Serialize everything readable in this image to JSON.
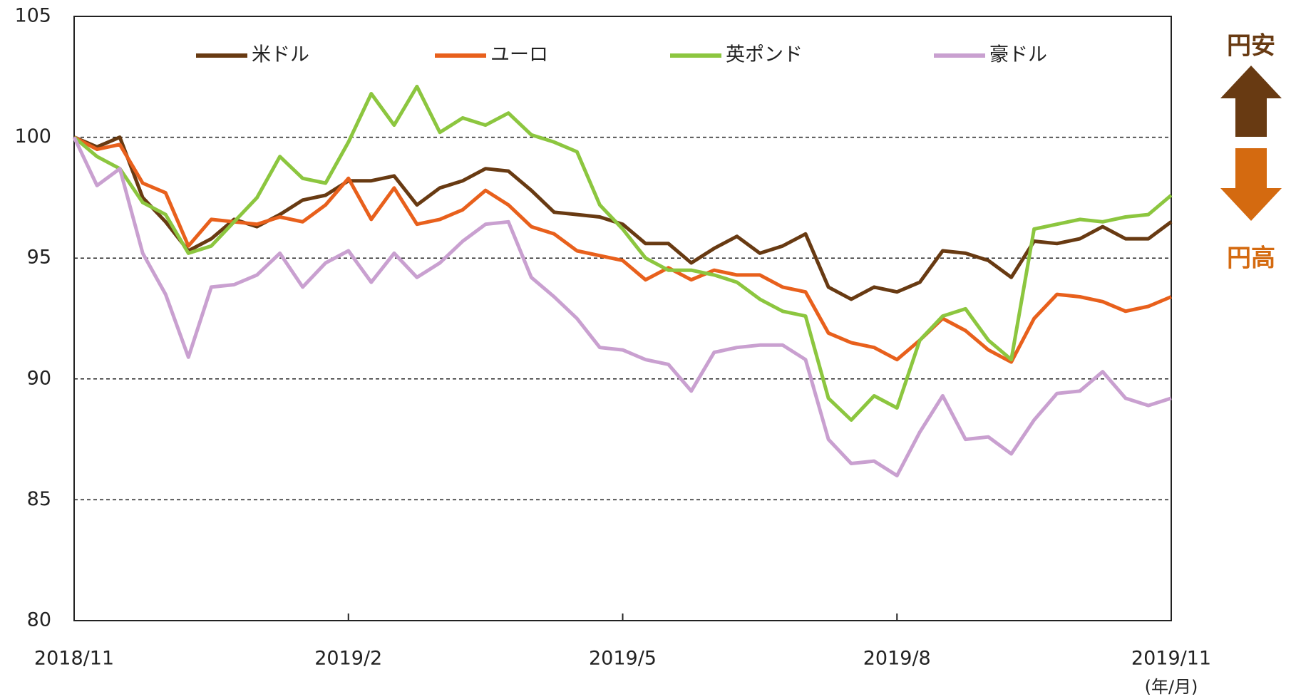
{
  "chart_data": {
    "type": "line",
    "legend": "top",
    "x": [
      0,
      0.25,
      0.5,
      0.75,
      1,
      1.25,
      1.5,
      1.75,
      2,
      2.25,
      2.5,
      2.75,
      3,
      3.25,
      3.5,
      3.75,
      4,
      4.25,
      4.5,
      4.75,
      5,
      5.25,
      5.5,
      5.75,
      6,
      6.25,
      6.5,
      6.75,
      7,
      7.25,
      7.5,
      7.75,
      8,
      8.25,
      8.5,
      8.75,
      9,
      9.25,
      9.5,
      9.75,
      10,
      10.25,
      10.5,
      10.75,
      11,
      11.25,
      11.5,
      11.75,
      12
    ],
    "xlim": [
      0,
      12
    ],
    "xticks": [
      {
        "value": 0,
        "label": "2018/11"
      },
      {
        "value": 3,
        "label": "2019/2"
      },
      {
        "value": 6,
        "label": "2019/5"
      },
      {
        "value": 9,
        "label": "2019/8"
      },
      {
        "value": 12,
        "label": "2019/11"
      }
    ],
    "x_unit": "(年/月)",
    "ylim": [
      80,
      105
    ],
    "yticks": [
      80,
      85,
      90,
      95,
      100,
      105
    ],
    "grid": true,
    "series": [
      {
        "name": "米ドル",
        "color": "#683a12",
        "values": [
          100,
          99.6,
          100,
          97.5,
          96.5,
          95.3,
          95.8,
          96.6,
          96.3,
          96.8,
          97.4,
          97.6,
          98.2,
          98.2,
          98.4,
          97.2,
          97.9,
          98.2,
          98.7,
          98.6,
          97.8,
          96.9,
          96.8,
          96.7,
          96.4,
          95.6,
          95.6,
          94.8,
          95.4,
          95.9,
          95.2,
          95.5,
          96.0,
          93.8,
          93.3,
          93.8,
          93.6,
          94.0,
          95.3,
          95.2,
          94.9,
          94.2,
          95.7,
          95.6,
          95.8,
          96.3,
          95.8,
          95.8,
          96.5
        ]
      },
      {
        "name": "ユーロ",
        "color": "#e8601c",
        "values": [
          100,
          99.5,
          99.7,
          98.1,
          97.7,
          95.5,
          96.6,
          96.5,
          96.4,
          96.7,
          96.5,
          97.2,
          98.3,
          96.6,
          97.9,
          96.4,
          96.6,
          97.0,
          97.8,
          97.2,
          96.3,
          96.0,
          95.3,
          95.1,
          94.9,
          94.1,
          94.6,
          94.1,
          94.5,
          94.3,
          94.3,
          93.8,
          93.6,
          91.9,
          91.5,
          91.3,
          90.8,
          91.6,
          92.5,
          92.0,
          91.2,
          90.7,
          92.5,
          93.5,
          93.4,
          93.2,
          92.8,
          93.0,
          93.4
        ]
      },
      {
        "name": "英ポンド",
        "color": "#8cc63f",
        "values": [
          100,
          99.2,
          98.7,
          97.3,
          96.8,
          95.2,
          95.5,
          96.5,
          97.5,
          99.2,
          98.3,
          98.1,
          99.8,
          101.8,
          100.5,
          102.1,
          100.2,
          100.8,
          100.5,
          101.0,
          100.1,
          99.8,
          99.4,
          97.2,
          96.2,
          95.0,
          94.5,
          94.5,
          94.3,
          94.0,
          93.3,
          92.8,
          92.6,
          89.2,
          88.3,
          89.3,
          88.8,
          91.6,
          92.6,
          92.9,
          91.6,
          90.8,
          96.2,
          96.4,
          96.6,
          96.5,
          96.7,
          96.8,
          97.6
        ]
      },
      {
        "name": "豪ドル",
        "color": "#c9a0d0",
        "values": [
          100,
          98.0,
          98.7,
          95.2,
          93.5,
          90.9,
          93.8,
          93.9,
          94.3,
          95.2,
          93.8,
          94.8,
          95.3,
          94.0,
          95.2,
          94.2,
          94.8,
          95.7,
          96.4,
          96.5,
          94.2,
          93.4,
          92.5,
          91.3,
          91.2,
          90.8,
          90.6,
          89.5,
          91.1,
          91.3,
          91.4,
          91.4,
          90.8,
          87.5,
          86.5,
          86.6,
          86.0,
          87.8,
          89.3,
          87.5,
          87.6,
          86.9,
          88.3,
          89.4,
          89.5,
          90.3,
          89.2,
          88.9,
          89.2
        ]
      }
    ],
    "annotations": [
      {
        "text": "円安",
        "color": "#683a12"
      },
      {
        "text": "円高",
        "color": "#d46a10"
      }
    ]
  }
}
